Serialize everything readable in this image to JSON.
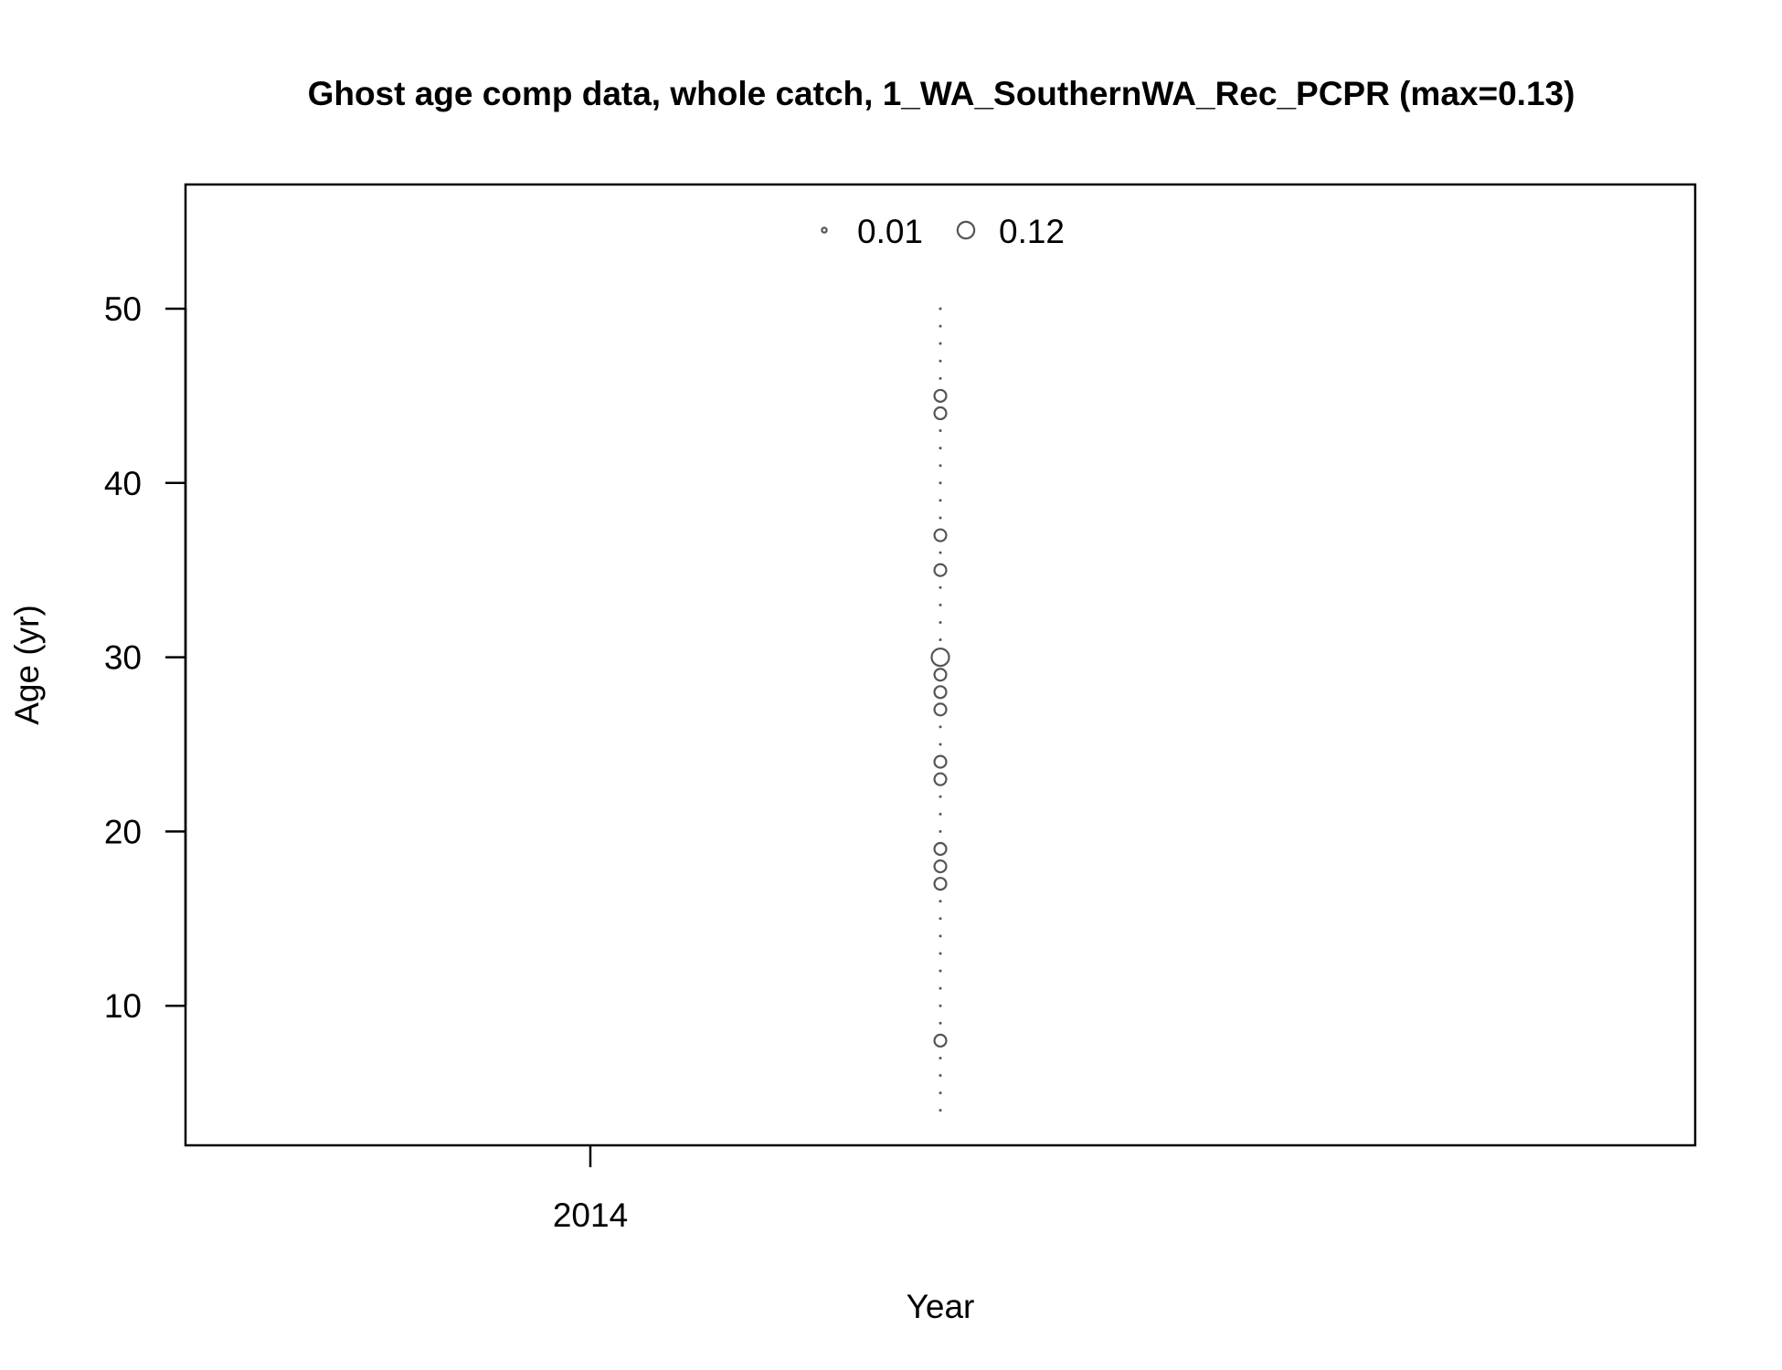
{
  "chart_data": {
    "type": "scatter",
    "subtype": "bubble",
    "title": "Ghost age comp data, whole catch, 1_WA_SouthernWA_Rec_PCPR (max=0.13)",
    "xlabel": "Year",
    "ylabel": "Age (yr)",
    "x_ticks": [
      "2014"
    ],
    "y_ticks": [
      10,
      20,
      30,
      40,
      50
    ],
    "year": 2014,
    "ylim": [
      3,
      56
    ],
    "grid": false,
    "legend": {
      "placement": "top",
      "entries": [
        {
          "label": "0.01",
          "value": 0.01
        },
        {
          "label": "0.12",
          "value": 0.12
        }
      ]
    },
    "points": [
      {
        "age": 4,
        "value": 0
      },
      {
        "age": 5,
        "value": 0
      },
      {
        "age": 6,
        "value": 0
      },
      {
        "age": 7,
        "value": 0
      },
      {
        "age": 8,
        "value": 0.06
      },
      {
        "age": 9,
        "value": 0
      },
      {
        "age": 10,
        "value": 0
      },
      {
        "age": 11,
        "value": 0
      },
      {
        "age": 12,
        "value": 0
      },
      {
        "age": 13,
        "value": 0
      },
      {
        "age": 14,
        "value": 0
      },
      {
        "age": 15,
        "value": 0
      },
      {
        "age": 16,
        "value": 0
      },
      {
        "age": 17,
        "value": 0.06
      },
      {
        "age": 18,
        "value": 0.06
      },
      {
        "age": 19,
        "value": 0.06
      },
      {
        "age": 20,
        "value": 0
      },
      {
        "age": 21,
        "value": 0
      },
      {
        "age": 22,
        "value": 0
      },
      {
        "age": 23,
        "value": 0.06
      },
      {
        "age": 24,
        "value": 0.06
      },
      {
        "age": 25,
        "value": 0
      },
      {
        "age": 26,
        "value": 0
      },
      {
        "age": 27,
        "value": 0.06
      },
      {
        "age": 28,
        "value": 0.06
      },
      {
        "age": 29,
        "value": 0.06
      },
      {
        "age": 30,
        "value": 0.13
      },
      {
        "age": 31,
        "value": 0
      },
      {
        "age": 32,
        "value": 0
      },
      {
        "age": 33,
        "value": 0
      },
      {
        "age": 34,
        "value": 0
      },
      {
        "age": 35,
        "value": 0.06
      },
      {
        "age": 36,
        "value": 0
      },
      {
        "age": 37,
        "value": 0.06
      },
      {
        "age": 38,
        "value": 0
      },
      {
        "age": 39,
        "value": 0
      },
      {
        "age": 40,
        "value": 0
      },
      {
        "age": 41,
        "value": 0
      },
      {
        "age": 42,
        "value": 0
      },
      {
        "age": 43,
        "value": 0
      },
      {
        "age": 44,
        "value": 0.06
      },
      {
        "age": 45,
        "value": 0.06
      },
      {
        "age": 46,
        "value": 0
      },
      {
        "age": 47,
        "value": 0
      },
      {
        "age": 48,
        "value": 0
      },
      {
        "age": 49,
        "value": 0
      },
      {
        "age": 50,
        "value": 0
      }
    ],
    "colors": {
      "axis": "#000000",
      "point": "#555555"
    }
  }
}
